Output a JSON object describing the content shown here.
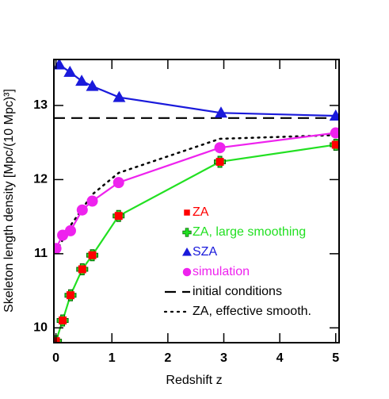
{
  "chart_data": {
    "type": "line",
    "x_label": "Redshift z",
    "y_label": "Skeleton length density [Mpc/(10 Mpc)³]",
    "xlim": [
      -0.037,
      5.06
    ],
    "ylim": [
      9.8,
      13.62
    ],
    "xticks": [
      0,
      1,
      2,
      3,
      4,
      5
    ],
    "yticks": [
      10,
      11,
      12,
      13
    ],
    "series": [
      {
        "name": "ZA",
        "color": "#ff0000",
        "marker": "square",
        "linestyle": "none",
        "x": [
          0,
          0.12,
          0.26,
          0.47,
          0.65,
          1.12,
          2.93,
          5.0
        ],
        "values": [
          9.82,
          10.1,
          10.44,
          10.79,
          10.98,
          11.51,
          12.24,
          12.47
        ]
      },
      {
        "name": "ZA, large smoothing",
        "color": "#22e022",
        "marker": "plus",
        "linestyle": "solid",
        "x": [
          0,
          0.12,
          0.26,
          0.47,
          0.65,
          1.12,
          2.93,
          5.0
        ],
        "values": [
          9.82,
          10.1,
          10.44,
          10.79,
          10.98,
          11.51,
          12.24,
          12.47
        ]
      },
      {
        "name": "SZA",
        "color": "#1a1adb",
        "marker": "triangle",
        "linestyle": "solid",
        "x": [
          0.06,
          0.25,
          0.46,
          0.65,
          1.13,
          2.95,
          5.0
        ],
        "values": [
          13.55,
          13.45,
          13.33,
          13.26,
          13.11,
          12.9,
          12.86
        ]
      },
      {
        "name": "simulation",
        "color": "#ee22ee",
        "marker": "circle",
        "linestyle": "solid",
        "x": [
          0,
          0.12,
          0.26,
          0.47,
          0.65,
          1.12,
          2.93,
          5.0
        ],
        "values": [
          11.07,
          11.25,
          11.31,
          11.59,
          11.71,
          11.96,
          12.43,
          12.63
        ]
      },
      {
        "name": "initial conditions",
        "color": "#000000",
        "marker": "none",
        "linestyle": "dashed",
        "x": [
          -0.037,
          5.06
        ],
        "values": [
          12.83,
          12.83
        ]
      },
      {
        "name": "ZA, effective smooth.",
        "color": "#000000",
        "marker": "none",
        "linestyle": "dotted",
        "x": [
          0,
          0.26,
          0.65,
          1.12,
          2.93,
          5.0
        ],
        "values": [
          11.02,
          11.38,
          11.8,
          12.09,
          12.55,
          12.6
        ]
      }
    ]
  }
}
